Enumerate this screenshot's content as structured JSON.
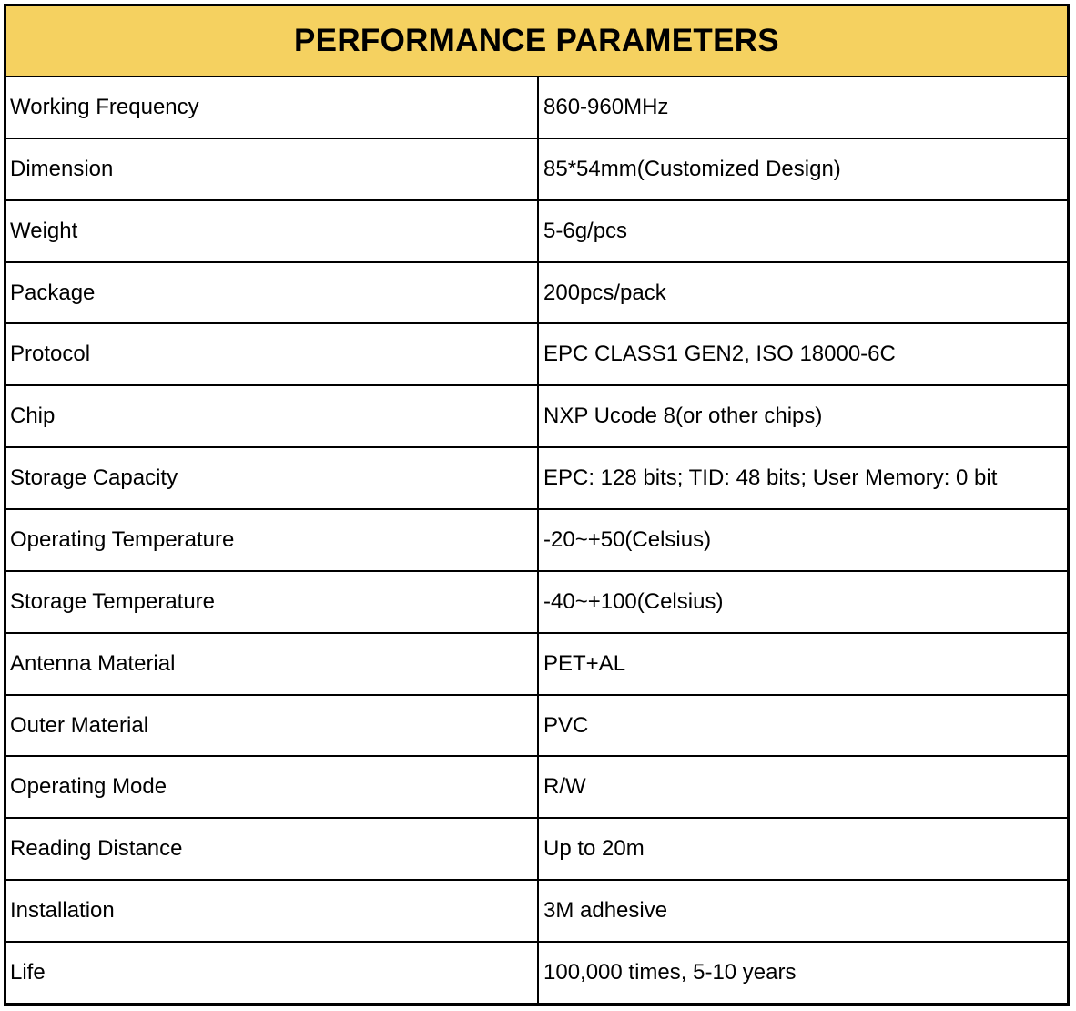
{
  "title": "PERFORMANCE PARAMETERS",
  "colors": {
    "header_background": "#f5d160",
    "border": "#000000",
    "text": "#000000"
  },
  "rows": [
    {
      "parameter": "Working Frequency",
      "value": "860-960MHz"
    },
    {
      "parameter": "Dimension",
      "value": "85*54mm(Customized Design)"
    },
    {
      "parameter": "Weight",
      "value": "5-6g/pcs"
    },
    {
      "parameter": "Package",
      "value": "200pcs/pack"
    },
    {
      "parameter": "Protocol",
      "value": "EPC CLASS1 GEN2, ISO 18000-6C"
    },
    {
      "parameter": "Chip",
      "value": "NXP Ucode 8(or other chips)"
    },
    {
      "parameter": "Storage Capacity",
      "value": "EPC: 128 bits; TID: 48 bits; User Memory: 0 bit"
    },
    {
      "parameter": "Operating Temperature",
      "value": "-20~+50(Celsius)"
    },
    {
      "parameter": "Storage Temperature",
      "value": "-40~+100(Celsius)"
    },
    {
      "parameter": "Antenna Material",
      "value": "PET+AL"
    },
    {
      "parameter": "Outer Material",
      "value": "PVC"
    },
    {
      "parameter": "Operating Mode",
      "value": "R/W"
    },
    {
      "parameter": "Reading Distance",
      "value": "Up to 20m"
    },
    {
      "parameter": "Installation",
      "value": "3M adhesive"
    },
    {
      "parameter": "Life",
      "value": "100,000 times, 5-10 years"
    }
  ]
}
